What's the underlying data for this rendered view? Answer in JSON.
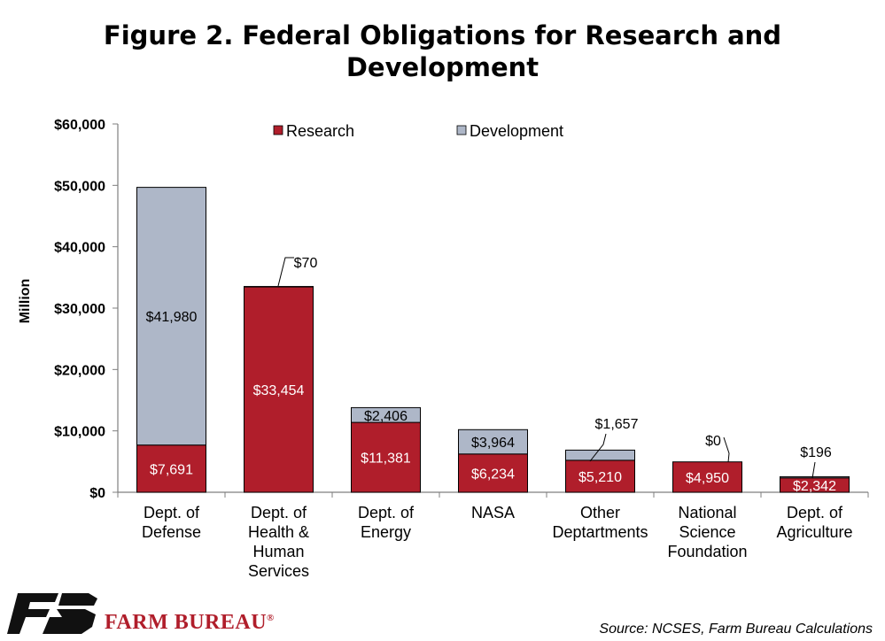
{
  "title_line1": "Figure 2. Federal Obligations for Research and",
  "title_line2": "Development",
  "source": "Source: NCSES, Farm Bureau Calculations",
  "brand": {
    "name": "FARM BUREAU",
    "mark": "®"
  },
  "colors": {
    "research": "#b01e2b",
    "development": "#aeb7c8",
    "axis": "#7f7f7f"
  },
  "chart_data": {
    "type": "bar",
    "stacked": true,
    "ylabel": "Million",
    "ylim": [
      0,
      60000
    ],
    "yticks": [
      {
        "value": 0,
        "label": "$0"
      },
      {
        "value": 10000,
        "label": "$10,000"
      },
      {
        "value": 20000,
        "label": "$20,000"
      },
      {
        "value": 30000,
        "label": "$30,000"
      },
      {
        "value": 40000,
        "label": "$40,000"
      },
      {
        "value": 50000,
        "label": "$50,000"
      },
      {
        "value": 60000,
        "label": "$60,000"
      }
    ],
    "categories": [
      [
        "Dept. of",
        "Defense"
      ],
      [
        "Dept. of",
        "Health &",
        "Human",
        "Services"
      ],
      [
        "Dept. of",
        "Energy"
      ],
      [
        "NASA"
      ],
      [
        "Other",
        "Deptartments"
      ],
      [
        "National",
        "Science",
        "Foundation"
      ],
      [
        "Dept. of",
        "Agriculture"
      ]
    ],
    "series": [
      {
        "name": "Research",
        "values": [
          7691,
          33454,
          11381,
          6234,
          5210,
          4950,
          2342
        ],
        "labels": [
          "$7,691",
          "$33,454",
          "$11,381",
          "$6,234",
          "$5,210",
          "$4,950",
          "$2,342"
        ]
      },
      {
        "name": "Development",
        "values": [
          41980,
          70,
          2406,
          3964,
          1657,
          0,
          196
        ],
        "labels": [
          "$41,980",
          "$70",
          "$2,406",
          "$3,964",
          "$1,657",
          "$0",
          "$196"
        ]
      }
    ],
    "legend": "top",
    "grid": false
  }
}
